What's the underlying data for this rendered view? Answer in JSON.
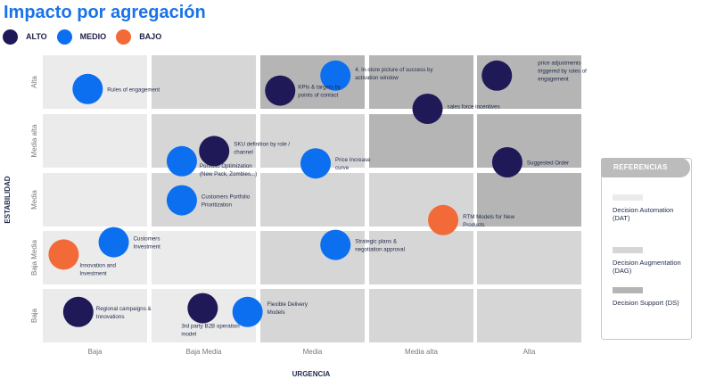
{
  "title": "Impacto por agregación",
  "legend": [
    {
      "label": "ALTO",
      "color": "#1f1a57"
    },
    {
      "label": "MEDIO",
      "color": "#0b6ff0"
    },
    {
      "label": "BAJO",
      "color": "#f26a37"
    }
  ],
  "references": {
    "header": "REFERENCIAS",
    "items": [
      {
        "label": "Decision Automation (DAT)",
        "color": "#ebebeb"
      },
      {
        "label": "Decision Augmentation (DAG)",
        "color": "#d6d6d6"
      },
      {
        "label": "Decision Support (DS)",
        "color": "#b5b5b5"
      }
    ]
  },
  "chart_data": {
    "type": "scatter",
    "title": "Impacto por agregación",
    "xlabel": "URGENCIA",
    "ylabel": "ESTABILIDAD",
    "x_categories": [
      "Baja",
      "Baja Media",
      "Media",
      "Media alta",
      "Alta"
    ],
    "y_categories": [
      "Baja",
      "Baja Media",
      "Media",
      "Media alta",
      "Alta"
    ],
    "grid": true,
    "legend_position": "top-left",
    "cell_categories": [
      [
        "DAT",
        "DAT",
        "DAG",
        "DAG",
        "DAG"
      ],
      [
        "DAT",
        "DAT",
        "DAG",
        "DAG",
        "DAG"
      ],
      [
        "DAT",
        "DAG",
        "DAG",
        "DAG",
        "DS"
      ],
      [
        "DAT",
        "DAG",
        "DAG",
        "DS",
        "DS"
      ],
      [
        "DAT",
        "DAG",
        "DS",
        "DS",
        "DS"
      ]
    ],
    "points": [
      {
        "label": "Rules of engagement",
        "x": 0.43,
        "y": 4.37,
        "impact": "MEDIO"
      },
      {
        "label": "4. In-store picture of success by activation window",
        "x": 2.72,
        "y": 4.62,
        "impact": "MEDIO"
      },
      {
        "label": "KPIs & targets by points of contact",
        "x": 2.19,
        "y": 4.34,
        "impact": "ALTO"
      },
      {
        "label": "price adjustments triggered by rules of engagement",
        "x": 4.19,
        "y": 4.62,
        "impact": "ALTO"
      },
      {
        "label": "sales force incentives",
        "x": 3.56,
        "y": 4.0,
        "impact": "ALTO"
      },
      {
        "label": "SKU definition by role / channel",
        "x": 1.6,
        "y": 3.31,
        "impact": "ALTO"
      },
      {
        "label": "Portfolio Optimization (New Pack, Zombies...)",
        "x": 1.29,
        "y": 3.12,
        "impact": "MEDIO"
      },
      {
        "label": "Price Increase curve",
        "x": 2.53,
        "y": 3.08,
        "impact": "MEDIO"
      },
      {
        "label": "Suggested Order",
        "x": 4.29,
        "y": 3.1,
        "impact": "ALTO"
      },
      {
        "label": "Customers Portfolio Prioritization",
        "x": 1.29,
        "y": 2.49,
        "impact": "MEDIO"
      },
      {
        "label": "RTM Models for New Products",
        "x": 3.71,
        "y": 2.12,
        "impact": "BAJO"
      },
      {
        "label": "Customers Investment",
        "x": 0.68,
        "y": 1.79,
        "impact": "MEDIO"
      },
      {
        "label": "Strategic plans & negotiation approval",
        "x": 2.72,
        "y": 1.74,
        "impact": "MEDIO"
      },
      {
        "label": "Innovation and Investment",
        "x": 0.2,
        "y": 1.56,
        "impact": "BAJO"
      },
      {
        "label": "Regional campaigns & Innovations",
        "x": 0.34,
        "y": 0.57,
        "impact": "ALTO"
      },
      {
        "label": "3rd party B2B operation model",
        "x": 1.49,
        "y": 0.64,
        "impact": "ALTO"
      },
      {
        "label": "Flexible Delivery Models",
        "x": 1.92,
        "y": 0.57,
        "impact": "MEDIO"
      }
    ]
  }
}
